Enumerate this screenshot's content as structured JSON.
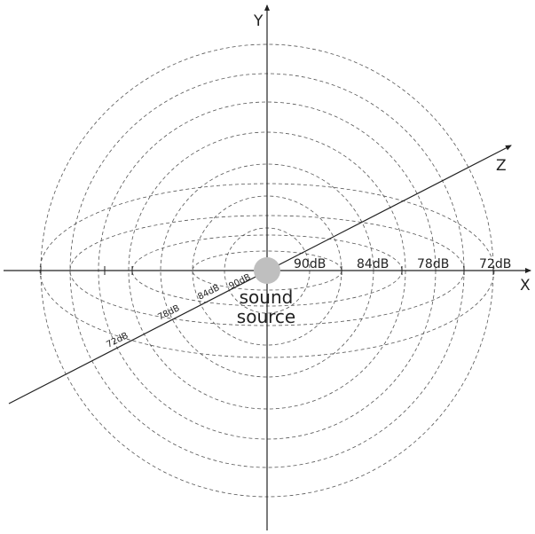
{
  "axes": {
    "x": "X",
    "y": "Y",
    "z": "Z"
  },
  "source": {
    "line1": "sound",
    "line2": "source",
    "color": "#bfbfbf"
  },
  "levels_x": [
    "90dB",
    "84dB",
    "78dB",
    "72dB"
  ],
  "levels_z": [
    "90dB",
    "84dB",
    "78dB",
    "72dB"
  ],
  "colors": {
    "line": "#222222",
    "dashed": "#555555"
  }
}
